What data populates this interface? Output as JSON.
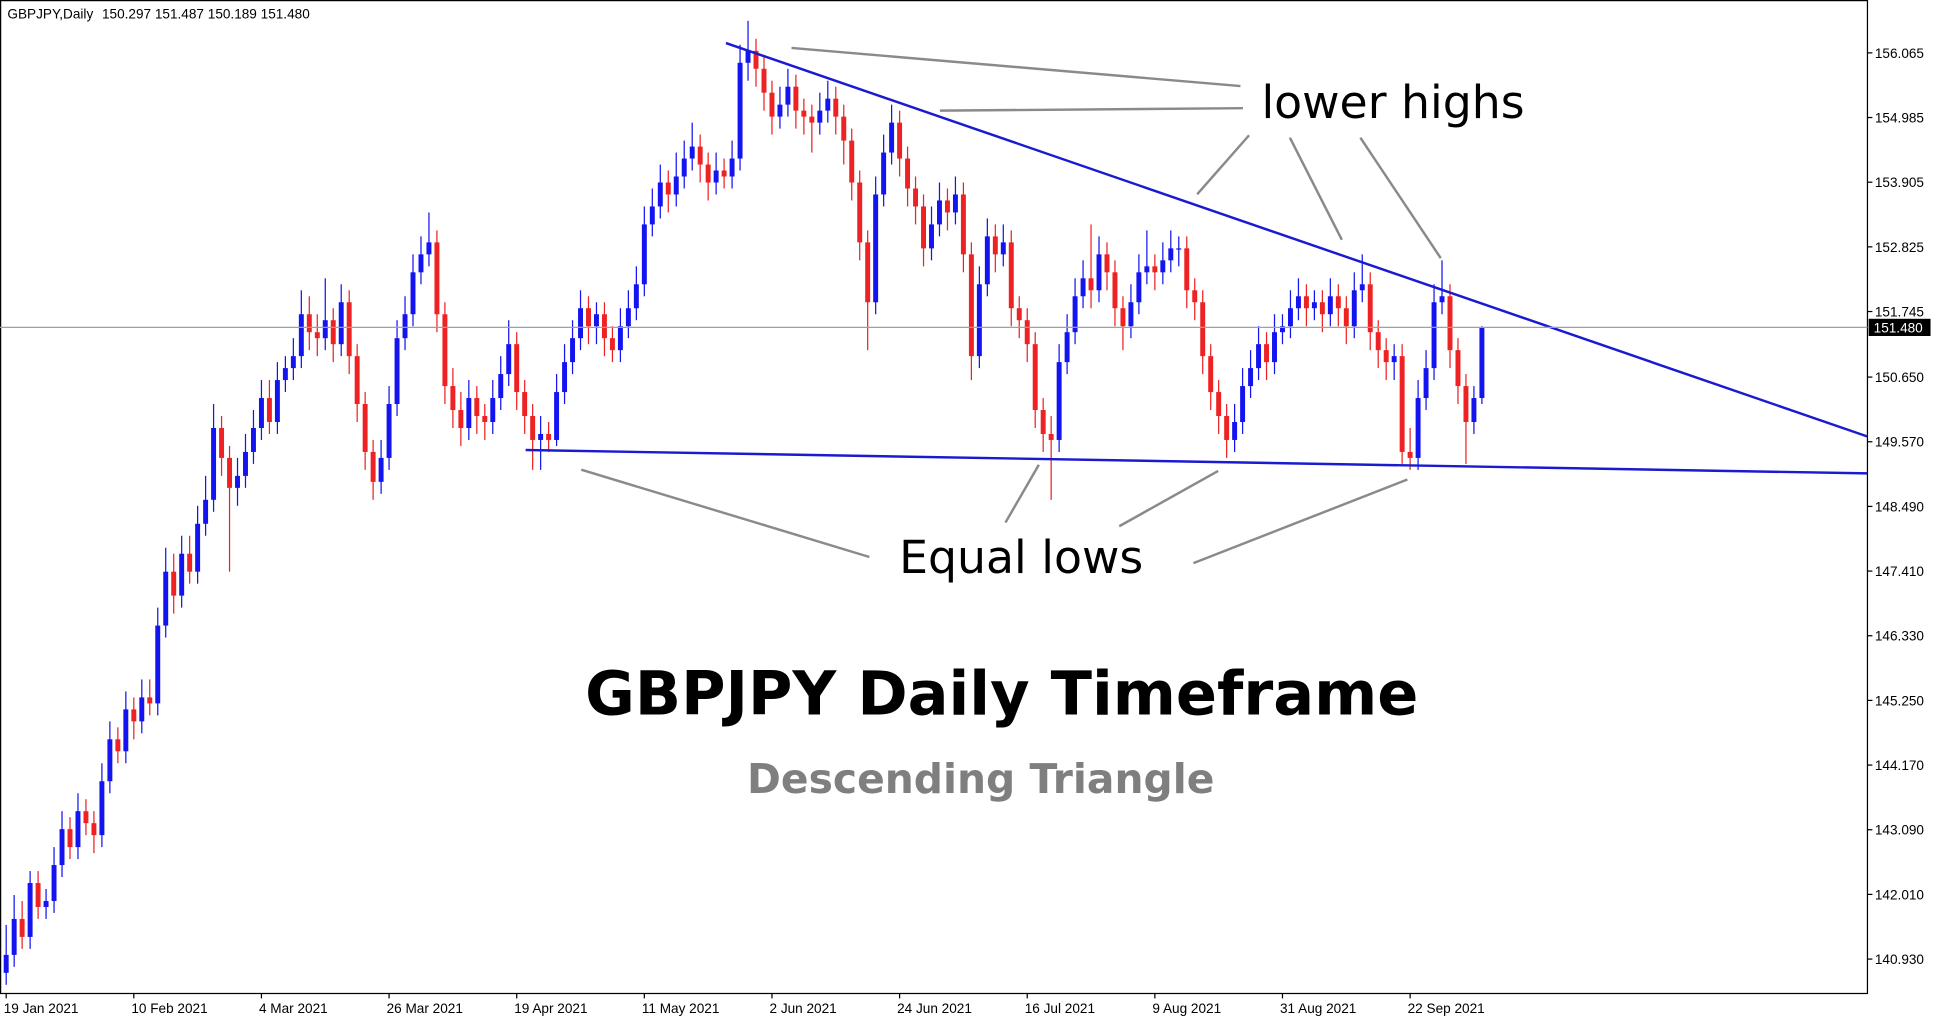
{
  "header": {
    "symbol": "GBPJPY,Daily",
    "open": "150.297",
    "high": "151.487",
    "low": "150.189",
    "close": "151.480"
  },
  "chart_data": {
    "type": "candlestick",
    "title": "GBPJPY Daily Timeframe",
    "subtitle": "Descending Triangle",
    "annotations": [
      "lower highs",
      "Equal lows"
    ],
    "bull_color": "#1414f0",
    "bear_color": "#ee2222",
    "ylim": [
      140.355,
      156.948
    ],
    "yticks": [
      {
        "value": 140.93,
        "label": "140.930"
      },
      {
        "value": 142.01,
        "label": "142.010"
      },
      {
        "value": 143.09,
        "label": "143.090"
      },
      {
        "value": 144.17,
        "label": "144.170"
      },
      {
        "value": 145.25,
        "label": "145.250"
      },
      {
        "value": 146.33,
        "label": "146.330"
      },
      {
        "value": 147.41,
        "label": "147.410"
      },
      {
        "value": 148.49,
        "label": "148.490"
      },
      {
        "value": 149.57,
        "label": "149.570"
      },
      {
        "value": 150.65,
        "label": "150.650"
      },
      151.745,
      152.825,
      153.905,
      154.985,
      156.065
    ],
    "current_price": {
      "value": 151.48,
      "label": "151.480"
    },
    "categories": [
      "19 Jan 2021",
      null,
      null,
      null,
      null,
      null,
      null,
      null,
      null,
      null,
      null,
      null,
      null,
      null,
      null,
      null,
      "10 Feb 2021",
      null,
      null,
      null,
      null,
      null,
      null,
      null,
      null,
      null,
      null,
      null,
      null,
      null,
      null,
      null,
      "4 Mar 2021",
      null,
      null,
      null,
      null,
      null,
      null,
      null,
      null,
      null,
      null,
      null,
      null,
      null,
      null,
      null,
      "26 Mar 2021",
      null,
      null,
      null,
      null,
      null,
      null,
      null,
      null,
      null,
      null,
      null,
      null,
      null,
      null,
      null,
      "19 Apr 2021",
      null,
      null,
      null,
      null,
      null,
      null,
      null,
      null,
      null,
      null,
      null,
      null,
      null,
      null,
      null,
      "11 May 2021",
      null,
      null,
      null,
      null,
      null,
      null,
      null,
      null,
      null,
      null,
      null,
      null,
      null,
      null,
      null,
      "2 Jun 2021",
      null,
      null,
      null,
      null,
      null,
      null,
      null,
      null,
      null,
      null,
      null,
      null,
      null,
      null,
      null,
      "24 Jun 2021",
      null,
      null,
      null,
      null,
      null,
      null,
      null,
      null,
      null,
      null,
      null,
      null,
      null,
      null,
      null,
      "16 Jul 2021",
      null,
      null,
      null,
      null,
      null,
      null,
      null,
      null,
      null,
      null,
      null,
      null,
      null,
      null,
      null,
      "9 Aug 2021",
      null,
      null,
      null,
      null,
      null,
      null,
      null,
      null,
      null,
      null,
      null,
      null,
      null,
      null,
      null,
      "31 Aug 2021",
      null,
      null,
      null,
      null,
      null,
      null,
      null,
      null,
      null,
      null,
      null,
      null,
      null,
      null,
      null,
      "22 Sep 2021",
      null,
      null,
      null,
      null,
      null,
      null,
      null,
      null,
      null
    ],
    "ohlc": [
      [
        140.7,
        141.5,
        140.5,
        141.0
      ],
      [
        141.0,
        142.0,
        140.8,
        141.6
      ],
      [
        141.6,
        141.9,
        141.1,
        141.3
      ],
      [
        141.3,
        142.4,
        141.1,
        142.2
      ],
      [
        142.2,
        142.4,
        141.6,
        141.8
      ],
      [
        141.8,
        142.1,
        141.6,
        141.9
      ],
      [
        141.9,
        142.8,
        141.7,
        142.5
      ],
      [
        142.5,
        143.4,
        142.3,
        143.1
      ],
      [
        143.1,
        143.3,
        142.6,
        142.8
      ],
      [
        142.8,
        143.7,
        142.6,
        143.4
      ],
      [
        143.4,
        143.6,
        143.0,
        143.2
      ],
      [
        143.2,
        143.4,
        142.7,
        143.0
      ],
      [
        143.0,
        144.2,
        142.8,
        143.9
      ],
      [
        143.9,
        144.9,
        143.7,
        144.6
      ],
      [
        144.6,
        144.8,
        144.2,
        144.4
      ],
      [
        144.4,
        145.4,
        144.2,
        145.1
      ],
      [
        145.1,
        145.3,
        144.6,
        144.9
      ],
      [
        144.9,
        145.6,
        144.7,
        145.3
      ],
      [
        145.3,
        145.6,
        145.0,
        145.2
      ],
      [
        145.2,
        146.8,
        145.0,
        146.5
      ],
      [
        146.5,
        147.8,
        146.3,
        147.4
      ],
      [
        147.4,
        147.7,
        146.7,
        147.0
      ],
      [
        147.0,
        148.0,
        146.8,
        147.7
      ],
      [
        147.7,
        148.0,
        147.2,
        147.4
      ],
      [
        147.4,
        148.5,
        147.2,
        148.2
      ],
      [
        148.2,
        149.0,
        148.0,
        148.6
      ],
      [
        148.6,
        150.2,
        148.4,
        149.8
      ],
      [
        149.8,
        150.0,
        149.0,
        149.3
      ],
      [
        149.3,
        149.5,
        147.4,
        148.8
      ],
      [
        148.8,
        149.3,
        148.5,
        149.0
      ],
      [
        149.0,
        149.7,
        148.8,
        149.4
      ],
      [
        149.4,
        150.1,
        149.2,
        149.8
      ],
      [
        149.8,
        150.6,
        149.6,
        150.3
      ],
      [
        150.3,
        150.6,
        149.7,
        149.9
      ],
      [
        149.9,
        150.9,
        149.7,
        150.6
      ],
      [
        150.6,
        151.0,
        150.4,
        150.8
      ],
      [
        150.8,
        151.3,
        150.6,
        151.0
      ],
      [
        151.0,
        152.1,
        150.8,
        151.7
      ],
      [
        151.7,
        152.0,
        151.1,
        151.4
      ],
      [
        151.4,
        151.7,
        151.0,
        151.3
      ],
      [
        151.3,
        152.3,
        151.1,
        151.6
      ],
      [
        151.6,
        151.8,
        150.9,
        151.2
      ],
      [
        151.2,
        152.2,
        151.0,
        151.9
      ],
      [
        151.9,
        152.1,
        150.7,
        151.0
      ],
      [
        151.0,
        151.2,
        149.9,
        150.2
      ],
      [
        150.2,
        150.4,
        149.1,
        149.4
      ],
      [
        149.4,
        149.6,
        148.6,
        148.9
      ],
      [
        148.9,
        149.6,
        148.7,
        149.3
      ],
      [
        149.3,
        150.5,
        149.1,
        150.2
      ],
      [
        150.2,
        151.6,
        150.0,
        151.3
      ],
      [
        151.3,
        152.0,
        151.1,
        151.7
      ],
      [
        151.7,
        152.7,
        151.5,
        152.4
      ],
      [
        152.4,
        153.0,
        152.2,
        152.7
      ],
      [
        152.7,
        153.4,
        152.5,
        152.9
      ],
      [
        152.9,
        153.1,
        151.4,
        151.7
      ],
      [
        151.7,
        151.9,
        150.2,
        150.5
      ],
      [
        150.5,
        150.8,
        149.8,
        150.1
      ],
      [
        150.1,
        150.4,
        149.5,
        149.8
      ],
      [
        149.8,
        150.6,
        149.6,
        150.3
      ],
      [
        150.3,
        150.5,
        149.7,
        150.0
      ],
      [
        150.0,
        150.2,
        149.6,
        149.9
      ],
      [
        149.9,
        150.6,
        149.7,
        150.3
      ],
      [
        150.3,
        151.0,
        150.1,
        150.7
      ],
      [
        150.7,
        151.6,
        150.5,
        151.2
      ],
      [
        151.2,
        151.4,
        150.1,
        150.4
      ],
      [
        150.4,
        150.6,
        149.7,
        150.0
      ],
      [
        150.0,
        150.2,
        149.1,
        149.6
      ],
      [
        149.6,
        150.0,
        149.1,
        149.7
      ],
      [
        149.7,
        149.9,
        149.4,
        149.6
      ],
      [
        149.6,
        150.7,
        149.5,
        150.4
      ],
      [
        150.4,
        151.2,
        150.2,
        150.9
      ],
      [
        150.9,
        151.6,
        150.7,
        151.3
      ],
      [
        151.3,
        152.1,
        151.1,
        151.8
      ],
      [
        151.8,
        152.0,
        151.2,
        151.5
      ],
      [
        151.5,
        151.9,
        151.2,
        151.7
      ],
      [
        151.7,
        151.9,
        151.0,
        151.3
      ],
      [
        151.3,
        151.5,
        150.9,
        151.1
      ],
      [
        151.1,
        151.8,
        150.9,
        151.5
      ],
      [
        151.5,
        152.1,
        151.3,
        151.8
      ],
      [
        151.8,
        152.5,
        151.6,
        152.2
      ],
      [
        152.2,
        153.5,
        152.0,
        153.2
      ],
      [
        153.2,
        153.8,
        153.0,
        153.5
      ],
      [
        153.5,
        154.2,
        153.3,
        153.9
      ],
      [
        153.9,
        154.1,
        153.4,
        153.7
      ],
      [
        153.7,
        154.4,
        153.5,
        154.0
      ],
      [
        154.0,
        154.6,
        153.8,
        154.3
      ],
      [
        154.3,
        154.9,
        154.1,
        154.5
      ],
      [
        154.5,
        154.7,
        153.9,
        154.2
      ],
      [
        154.2,
        154.4,
        153.6,
        153.9
      ],
      [
        153.9,
        154.4,
        153.7,
        154.1
      ],
      [
        154.1,
        154.3,
        153.8,
        154.0
      ],
      [
        154.0,
        154.6,
        153.8,
        154.3
      ],
      [
        154.3,
        156.2,
        154.1,
        155.9
      ],
      [
        155.9,
        156.6,
        155.6,
        156.1
      ],
      [
        156.1,
        156.3,
        155.5,
        155.8
      ],
      [
        155.8,
        156.0,
        155.1,
        155.4
      ],
      [
        155.4,
        155.6,
        154.7,
        155.0
      ],
      [
        155.0,
        155.5,
        154.8,
        155.2
      ],
      [
        155.2,
        155.8,
        155.0,
        155.5
      ],
      [
        155.5,
        155.7,
        154.8,
        155.1
      ],
      [
        155.1,
        155.3,
        154.7,
        155.0
      ],
      [
        155.0,
        155.2,
        154.4,
        154.9
      ],
      [
        154.9,
        155.4,
        154.7,
        155.1
      ],
      [
        155.1,
        155.6,
        154.9,
        155.3
      ],
      [
        155.3,
        155.5,
        154.7,
        155.0
      ],
      [
        155.0,
        155.2,
        154.2,
        154.6
      ],
      [
        154.6,
        154.8,
        153.6,
        153.9
      ],
      [
        153.9,
        154.1,
        152.6,
        152.9
      ],
      [
        152.9,
        153.1,
        151.1,
        151.9
      ],
      [
        151.9,
        154.0,
        151.7,
        153.7
      ],
      [
        153.7,
        154.7,
        153.5,
        154.4
      ],
      [
        154.4,
        155.2,
        154.2,
        154.9
      ],
      [
        154.9,
        155.1,
        154.0,
        154.3
      ],
      [
        154.3,
        154.5,
        153.5,
        153.8
      ],
      [
        153.8,
        154.0,
        153.2,
        153.5
      ],
      [
        153.5,
        153.7,
        152.5,
        152.8
      ],
      [
        152.8,
        153.5,
        152.6,
        153.2
      ],
      [
        153.2,
        153.9,
        153.0,
        153.6
      ],
      [
        153.6,
        153.8,
        153.1,
        153.4
      ],
      [
        153.4,
        154.0,
        153.2,
        153.7
      ],
      [
        153.7,
        153.9,
        152.4,
        152.7
      ],
      [
        152.7,
        152.9,
        150.6,
        151.0
      ],
      [
        151.0,
        152.5,
        150.8,
        152.2
      ],
      [
        152.2,
        153.3,
        152.0,
        153.0
      ],
      [
        153.0,
        153.2,
        152.4,
        152.7
      ],
      [
        152.7,
        153.2,
        152.5,
        152.9
      ],
      [
        152.9,
        153.1,
        151.5,
        151.8
      ],
      [
        151.8,
        152.0,
        151.3,
        151.6
      ],
      [
        151.6,
        151.8,
        150.9,
        151.2
      ],
      [
        151.2,
        151.4,
        149.8,
        150.1
      ],
      [
        150.1,
        150.3,
        149.4,
        149.7
      ],
      [
        149.7,
        150.0,
        148.6,
        149.6
      ],
      [
        149.6,
        151.2,
        149.4,
        150.9
      ],
      [
        150.9,
        151.7,
        150.7,
        151.4
      ],
      [
        151.4,
        152.3,
        151.2,
        152.0
      ],
      [
        152.0,
        152.6,
        151.8,
        152.3
      ],
      [
        152.3,
        153.2,
        151.8,
        152.1
      ],
      [
        152.1,
        153.0,
        151.9,
        152.7
      ],
      [
        152.7,
        152.9,
        152.1,
        152.4
      ],
      [
        152.4,
        152.6,
        151.5,
        151.8
      ],
      [
        151.8,
        152.0,
        151.1,
        151.5
      ],
      [
        151.5,
        152.2,
        151.3,
        151.9
      ],
      [
        151.9,
        152.7,
        151.7,
        152.4
      ],
      [
        152.4,
        153.1,
        152.2,
        152.5
      ],
      [
        152.5,
        152.7,
        152.1,
        152.4
      ],
      [
        152.4,
        152.9,
        152.2,
        152.6
      ],
      [
        152.6,
        153.1,
        152.4,
        152.8
      ],
      [
        152.8,
        153.0,
        152.5,
        152.8
      ],
      [
        152.8,
        153.0,
        151.8,
        152.1
      ],
      [
        152.1,
        152.3,
        151.6,
        151.9
      ],
      [
        151.9,
        152.1,
        150.7,
        151.0
      ],
      [
        151.0,
        151.2,
        150.1,
        150.4
      ],
      [
        150.4,
        150.6,
        149.7,
        150.0
      ],
      [
        150.0,
        150.2,
        149.3,
        149.6
      ],
      [
        149.6,
        150.2,
        149.4,
        149.9
      ],
      [
        149.9,
        150.8,
        149.7,
        150.5
      ],
      [
        150.5,
        151.1,
        150.3,
        150.8
      ],
      [
        150.8,
        151.5,
        150.6,
        151.2
      ],
      [
        151.2,
        151.4,
        150.6,
        150.9
      ],
      [
        150.9,
        151.7,
        150.7,
        151.4
      ],
      [
        151.4,
        151.7,
        151.2,
        151.5
      ],
      [
        151.5,
        152.1,
        151.3,
        151.8
      ],
      [
        151.8,
        152.3,
        151.6,
        152.0
      ],
      [
        152.0,
        152.2,
        151.5,
        151.8
      ],
      [
        151.8,
        152.1,
        151.6,
        151.9
      ],
      [
        151.9,
        152.1,
        151.4,
        151.7
      ],
      [
        151.7,
        152.3,
        151.5,
        152.0
      ],
      [
        152.0,
        152.2,
        151.5,
        151.8
      ],
      [
        151.8,
        152.0,
        151.2,
        151.5
      ],
      [
        151.5,
        152.4,
        151.3,
        152.1
      ],
      [
        152.1,
        152.7,
        151.9,
        152.2
      ],
      [
        152.2,
        152.4,
        151.1,
        151.4
      ],
      [
        151.4,
        151.6,
        150.8,
        151.1
      ],
      [
        151.1,
        151.3,
        150.6,
        150.9
      ],
      [
        150.9,
        151.2,
        150.6,
        151.0
      ],
      [
        151.0,
        151.2,
        149.2,
        149.4
      ],
      [
        149.4,
        149.8,
        149.1,
        149.3
      ],
      [
        149.3,
        150.6,
        149.1,
        150.3
      ],
      [
        150.3,
        151.1,
        150.1,
        150.8
      ],
      [
        150.8,
        152.2,
        150.6,
        151.9
      ],
      [
        151.9,
        152.6,
        151.7,
        152.0
      ],
      [
        152.0,
        152.2,
        150.8,
        151.1
      ],
      [
        151.1,
        151.3,
        150.2,
        150.5
      ],
      [
        150.5,
        150.7,
        149.2,
        149.9
      ],
      [
        149.9,
        150.5,
        149.7,
        150.3
      ],
      [
        150.3,
        151.5,
        150.2,
        151.48
      ]
    ]
  }
}
